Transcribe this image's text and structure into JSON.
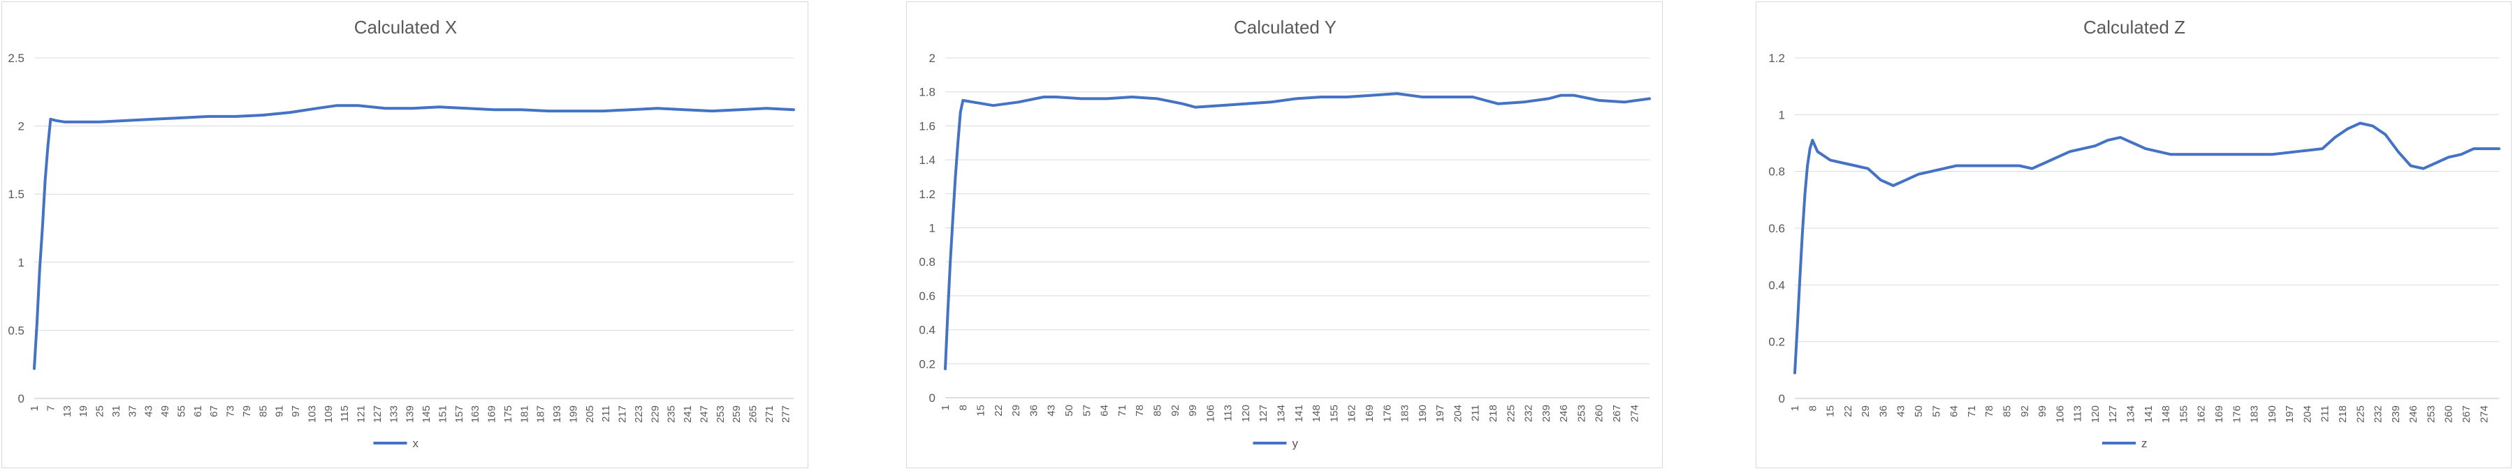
{
  "chart_data": [
    {
      "type": "line",
      "title": "Calculated X",
      "series_color": "#4472c4",
      "grid": true,
      "legend_position": "bottom",
      "ylim": [
        0,
        2.5
      ],
      "y_ticks": [
        0,
        0.5,
        1,
        1.5,
        2,
        2.5
      ],
      "x_tick_labels": [
        "1",
        "7",
        "13",
        "19",
        "25",
        "31",
        "37",
        "43",
        "49",
        "55",
        "61",
        "67",
        "73",
        "79",
        "85",
        "91",
        "97",
        "103",
        "109",
        "115",
        "121",
        "127",
        "133",
        "139",
        "145",
        "151",
        "157",
        "163",
        "169",
        "175",
        "181",
        "187",
        "193",
        "199",
        "205",
        "211",
        "217",
        "223",
        "229",
        "235",
        "241",
        "247",
        "253",
        "259",
        "265",
        "271",
        "277"
      ],
      "series": [
        {
          "name": "x",
          "x": [
            1,
            2,
            3,
            4,
            5,
            6,
            7,
            9,
            12,
            18,
            25,
            35,
            45,
            55,
            65,
            75,
            85,
            95,
            105,
            112,
            120,
            130,
            140,
            150,
            160,
            170,
            180,
            190,
            200,
            210,
            220,
            230,
            240,
            250,
            260,
            270,
            280
          ],
          "values": [
            0.22,
            0.55,
            0.95,
            1.25,
            1.6,
            1.85,
            2.05,
            2.04,
            2.03,
            2.03,
            2.03,
            2.04,
            2.05,
            2.06,
            2.07,
            2.07,
            2.08,
            2.1,
            2.13,
            2.15,
            2.15,
            2.13,
            2.13,
            2.14,
            2.13,
            2.12,
            2.12,
            2.11,
            2.11,
            2.11,
            2.12,
            2.13,
            2.12,
            2.11,
            2.12,
            2.13,
            2.12
          ]
        }
      ]
    },
    {
      "type": "line",
      "title": "Calculated Y",
      "series_color": "#4472c4",
      "grid": true,
      "legend_position": "bottom",
      "ylim": [
        0,
        2
      ],
      "y_ticks": [
        0,
        0.2,
        0.4,
        0.6,
        0.8,
        1,
        1.2,
        1.4,
        1.6,
        1.8,
        2
      ],
      "x_tick_labels": [
        "1",
        "8",
        "15",
        "22",
        "29",
        "36",
        "43",
        "50",
        "57",
        "64",
        "71",
        "78",
        "85",
        "92",
        "99",
        "106",
        "113",
        "120",
        "127",
        "134",
        "141",
        "148",
        "155",
        "162",
        "169",
        "176",
        "183",
        "190",
        "197",
        "204",
        "211",
        "218",
        "225",
        "232",
        "239",
        "246",
        "253",
        "260",
        "267",
        "274"
      ],
      "series": [
        {
          "name": "y",
          "x": [
            1,
            2,
            3,
            4,
            5,
            6,
            7,
            8,
            12,
            20,
            30,
            40,
            45,
            55,
            65,
            75,
            85,
            95,
            100,
            110,
            120,
            130,
            140,
            150,
            160,
            170,
            180,
            190,
            200,
            210,
            220,
            230,
            240,
            245,
            250,
            260,
            270,
            280
          ],
          "values": [
            0.17,
            0.5,
            0.8,
            1.05,
            1.3,
            1.5,
            1.68,
            1.75,
            1.74,
            1.72,
            1.74,
            1.77,
            1.77,
            1.76,
            1.76,
            1.77,
            1.76,
            1.73,
            1.71,
            1.72,
            1.73,
            1.74,
            1.76,
            1.77,
            1.77,
            1.78,
            1.79,
            1.77,
            1.77,
            1.77,
            1.73,
            1.74,
            1.76,
            1.78,
            1.78,
            1.75,
            1.74,
            1.76
          ]
        }
      ]
    },
    {
      "type": "line",
      "title": "Calculated Z",
      "series_color": "#4472c4",
      "grid": true,
      "legend_position": "bottom",
      "ylim": [
        0,
        1.2
      ],
      "y_ticks": [
        0,
        0.2,
        0.4,
        0.6,
        0.8,
        1,
        1.2
      ],
      "x_tick_labels": [
        "1",
        "8",
        "15",
        "22",
        "29",
        "36",
        "43",
        "50",
        "57",
        "64",
        "71",
        "78",
        "85",
        "92",
        "99",
        "106",
        "113",
        "120",
        "127",
        "134",
        "141",
        "148",
        "155",
        "162",
        "169",
        "176",
        "183",
        "190",
        "197",
        "204",
        "211",
        "218",
        "225",
        "232",
        "239",
        "246",
        "253",
        "260",
        "267",
        "274"
      ],
      "series": [
        {
          "name": "z",
          "x": [
            1,
            2,
            3,
            4,
            5,
            6,
            7,
            8,
            10,
            15,
            20,
            25,
            30,
            35,
            40,
            45,
            50,
            55,
            60,
            65,
            70,
            80,
            90,
            95,
            100,
            105,
            110,
            120,
            125,
            130,
            135,
            140,
            145,
            150,
            160,
            170,
            180,
            190,
            200,
            210,
            215,
            220,
            225,
            230,
            235,
            240,
            245,
            250,
            255,
            260,
            265,
            270,
            275,
            280
          ],
          "values": [
            0.09,
            0.25,
            0.42,
            0.58,
            0.72,
            0.82,
            0.88,
            0.91,
            0.87,
            0.84,
            0.83,
            0.82,
            0.81,
            0.77,
            0.75,
            0.77,
            0.79,
            0.8,
            0.81,
            0.82,
            0.82,
            0.82,
            0.82,
            0.81,
            0.83,
            0.85,
            0.87,
            0.89,
            0.91,
            0.92,
            0.9,
            0.88,
            0.87,
            0.86,
            0.86,
            0.86,
            0.86,
            0.86,
            0.87,
            0.88,
            0.92,
            0.95,
            0.97,
            0.96,
            0.93,
            0.87,
            0.82,
            0.81,
            0.83,
            0.85,
            0.86,
            0.88,
            0.88,
            0.88
          ]
        }
      ]
    }
  ]
}
